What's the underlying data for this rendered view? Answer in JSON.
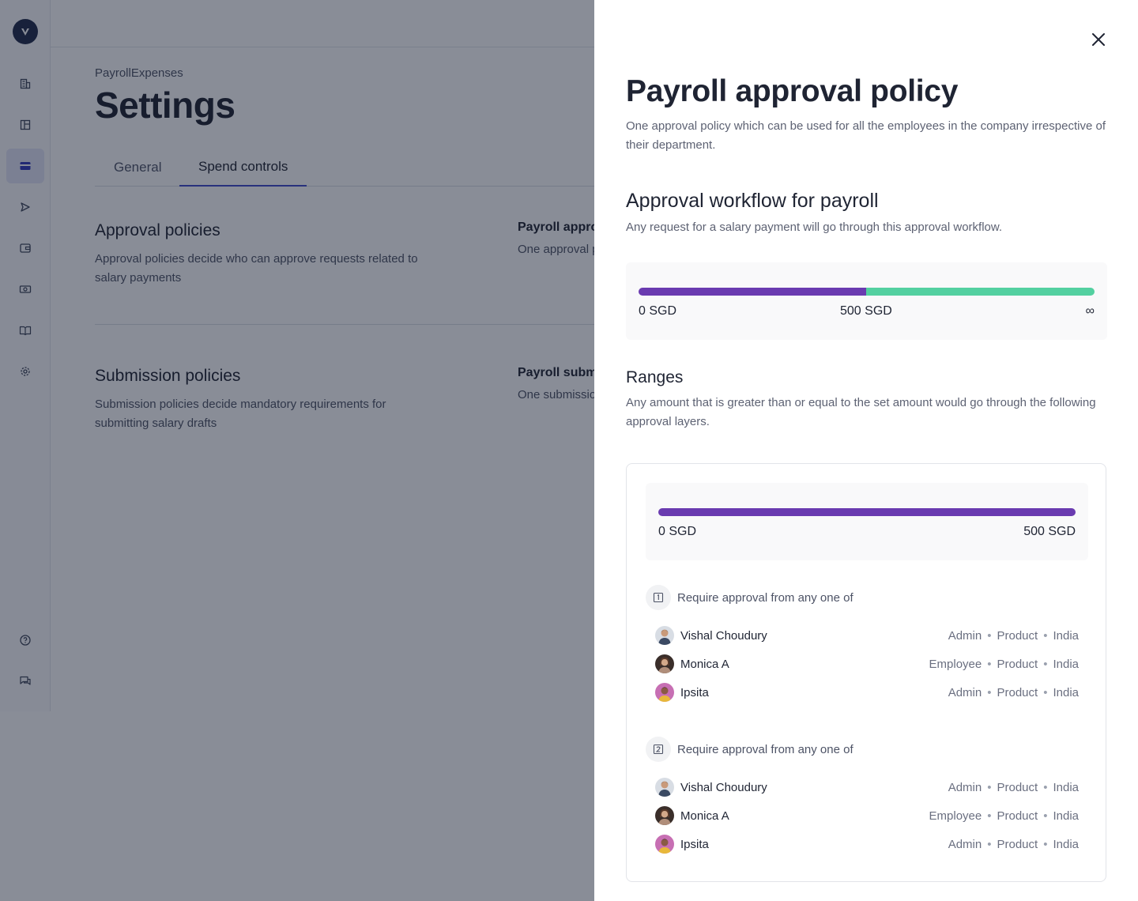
{
  "app": {
    "breadcrumb": "PayrollExpenses",
    "title": "Settings",
    "tabs": [
      {
        "label": "General",
        "active": false
      },
      {
        "label": "Spend controls",
        "active": true
      }
    ],
    "sections": [
      {
        "title": "Approval policies",
        "description": "Approval policies decide who can approve requests related to salary payments",
        "policy_title": "Payroll appro",
        "policy_desc": "One approval p department"
      },
      {
        "title": "Submission policies",
        "description": "Submission policies decide mandatory requirements for submitting salary drafts",
        "policy_title": "Payroll submi",
        "policy_desc": "One submissio department"
      }
    ],
    "sidebar_icons": [
      "building-icon",
      "layout-icon",
      "card-icon",
      "send-icon",
      "wallet-icon",
      "cash-icon",
      "book-icon",
      "gear-icon"
    ],
    "sidebar_bottom_icons": [
      "help-icon",
      "chat-icon"
    ]
  },
  "drawer": {
    "title": "Payroll approval policy",
    "subtitle": "One approval policy which can be used for all the employees in the company irrespective of their department.",
    "workflow_title": "Approval workflow for payroll",
    "workflow_desc": "Any request for a salary payment will go through this approval workflow.",
    "workflow_ticks": [
      "0 SGD",
      "500 SGD",
      "∞"
    ],
    "ranges_title": "Ranges",
    "ranges_desc": "Any amount that is greater than or equal to the set amount would go through the following approval layers.",
    "range": {
      "start": "0 SGD",
      "end": "500 SGD",
      "levels": [
        {
          "label": "Require approval from any one of",
          "level_number": 1,
          "approvers": [
            {
              "name": "Vishal Choudury",
              "role": "Admin",
              "dept": "Product",
              "country": "India"
            },
            {
              "name": "Monica A",
              "role": "Employee",
              "dept": "Product",
              "country": "India"
            },
            {
              "name": "Ipsita",
              "role": "Admin",
              "dept": "Product",
              "country": "India"
            }
          ]
        },
        {
          "label": "Require approval from any one of",
          "level_number": 2,
          "approvers": [
            {
              "name": "Vishal Choudury",
              "role": "Admin",
              "dept": "Product",
              "country": "India"
            },
            {
              "name": "Monica A",
              "role": "Employee",
              "dept": "Product",
              "country": "India"
            },
            {
              "name": "Ipsita",
              "role": "Admin",
              "dept": "Product",
              "country": "India"
            }
          ]
        }
      ]
    },
    "separator": "•",
    "colors": {
      "range_primary": "#6a3bb0",
      "range_secondary": "#53d0a0",
      "accent": "#3d46c8"
    }
  }
}
